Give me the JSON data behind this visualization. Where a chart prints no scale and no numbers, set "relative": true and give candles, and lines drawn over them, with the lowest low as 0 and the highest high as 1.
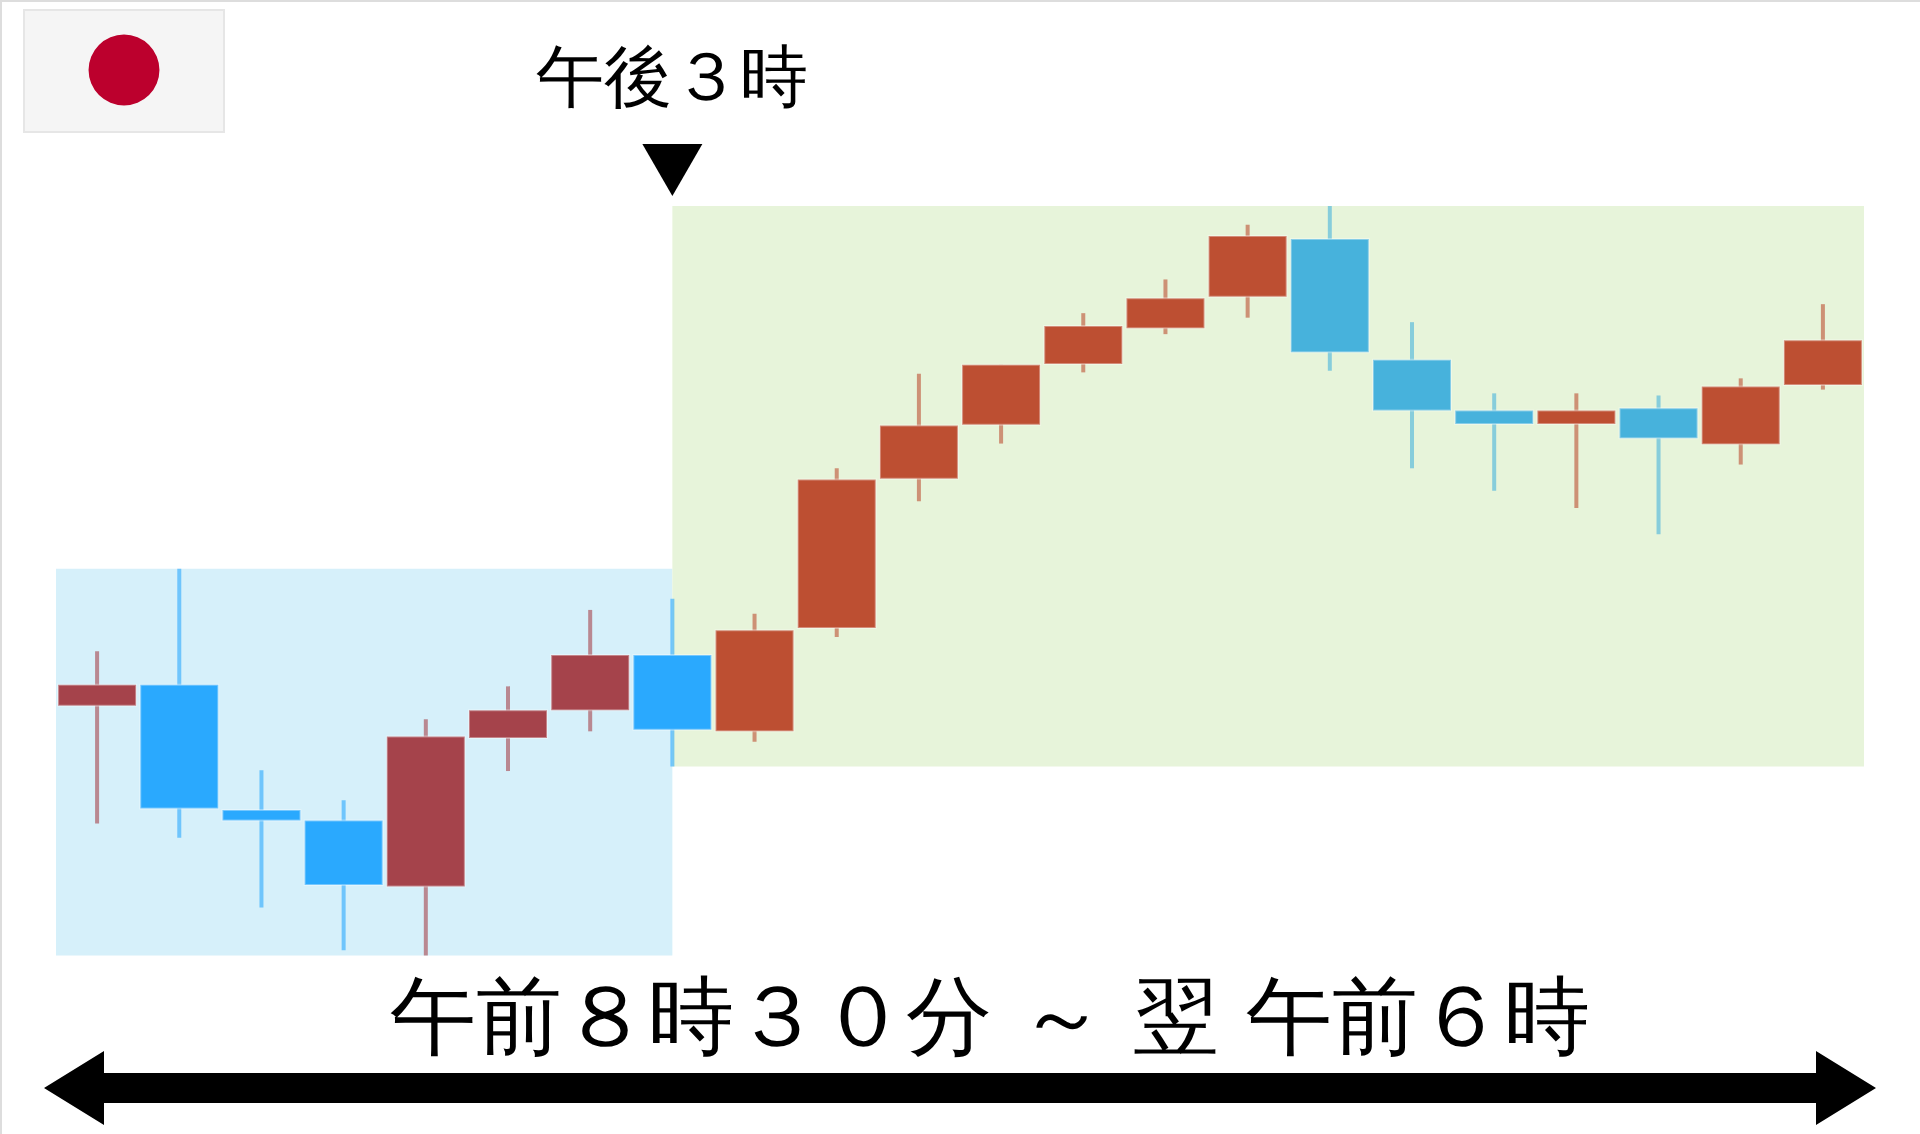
{
  "chart_data": {
    "type": "candlestick",
    "relative": true,
    "tick_labels": false,
    "categories": [
      null,
      null,
      null,
      null,
      null,
      null,
      null,
      null,
      null,
      null,
      null,
      null,
      null,
      null,
      null,
      null,
      null,
      null,
      null,
      null,
      null,
      null
    ],
    "ohlc": [
      [
        0.333,
        0.406,
        0.176,
        0.361
      ],
      [
        0.361,
        0.516,
        0.157,
        0.196
      ],
      [
        0.194,
        0.247,
        0.064,
        0.18
      ],
      [
        0.18,
        0.207,
        0.007,
        0.094
      ],
      [
        0.092,
        0.315,
        0,
        0.292
      ],
      [
        0.29,
        0.359,
        0.246,
        0.327
      ],
      [
        0.327,
        0.461,
        0.299,
        0.401
      ],
      [
        0.401,
        0.476,
        0.252,
        0.301
      ],
      [
        0.299,
        0.456,
        0.285,
        0.434
      ],
      [
        0.437,
        0.65,
        0.425,
        0.635
      ],
      [
        0.636,
        0.776,
        0.606,
        0.707
      ],
      [
        0.708,
        0.788,
        0.683,
        0.788
      ],
      [
        0.789,
        0.857,
        0.778,
        0.84
      ],
      [
        0.837,
        0.902,
        0.829,
        0.877
      ],
      [
        0.879,
        0.975,
        0.851,
        0.96
      ],
      [
        0.956,
        1,
        0.78,
        0.805
      ],
      [
        0.795,
        0.845,
        0.65,
        0.727
      ],
      [
        0.727,
        0.75,
        0.62,
        0.709
      ],
      [
        0.709,
        0.75,
        0.597,
        0.727
      ],
      [
        0.73,
        0.747,
        0.562,
        0.69
      ],
      [
        0.682,
        0.77,
        0.655,
        0.759
      ],
      [
        0.761,
        0.869,
        0.755,
        0.821
      ]
    ],
    "colors": [
      "#a5434b",
      "#2aa9fe",
      "#2aa9fe",
      "#2aa9fe",
      "#a5434b",
      "#a5434b",
      "#a5434b",
      "#2aa9fe",
      "#bd4f32",
      "#bd4f32",
      "#bd4f32",
      "#bd4f32",
      "#bd4f32",
      "#bd4f32",
      "#bd4f32",
      "#47b2dc",
      "#47b2dc",
      "#47b2dc",
      "#bd4f32",
      "#47b2dc",
      "#bd4f32",
      "#bd4f32"
    ],
    "annotations": [
      "午後３時",
      "午前８時３０分 ～ 翌 午前６時"
    ]
  }
}
